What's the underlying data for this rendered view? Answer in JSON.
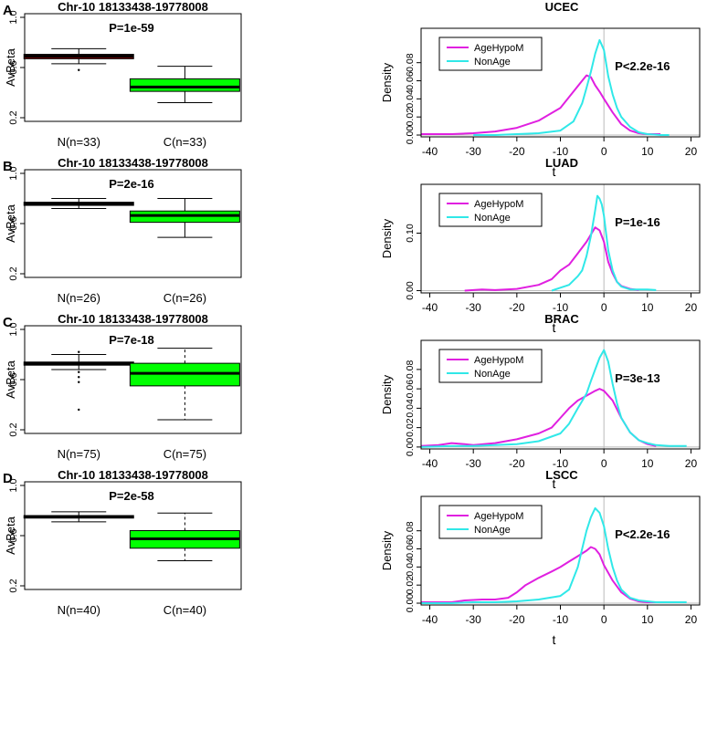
{
  "chart_data": [
    {
      "panel": "A",
      "type": "box",
      "title": "Chr-10 18133438-19778008",
      "ylabel": "AvBeta",
      "ylim": [
        0.2,
        1.0
      ],
      "yticks": [
        "0.2",
        "0.6",
        "1.0"
      ],
      "annotation": "P=1e-59",
      "categories": [
        "N(n=33)",
        "C(n=33)"
      ],
      "boxes": [
        {
          "label": "N(n=33)",
          "color": "#8b0000",
          "whisker_low": 0.63,
          "q1": 0.67,
          "median": 0.69,
          "q3": 0.705,
          "whisker_high": 0.75,
          "outliers": [
            0.58
          ]
        },
        {
          "label": "C(n=33)",
          "color": "#00ff00",
          "whisker_low": 0.32,
          "q1": 0.41,
          "median": 0.445,
          "q3": 0.51,
          "whisker_high": 0.61,
          "outliers": []
        }
      ]
    },
    {
      "panel": "A",
      "type": "line",
      "title": "UCEC",
      "xlabel": "t",
      "ylabel": "Density",
      "xlim": [
        -42,
        22
      ],
      "ylim": [
        -0.002,
        0.118
      ],
      "xticks": [
        "-40",
        "-30",
        "-20",
        "-10",
        "0",
        "10",
        "20"
      ],
      "yticks": [
        "0.00",
        "0.02",
        "0.04",
        "0.06",
        "0.08"
      ],
      "annotation": "P<2.2e-16",
      "legend_position": "top-left",
      "series": [
        {
          "name": "AgeHypoM",
          "color": "#e020e0",
          "x": [
            -42,
            -35,
            -30,
            -25,
            -20,
            -15,
            -10,
            -7,
            -5,
            -4,
            -3,
            -2,
            -1,
            0,
            2,
            4,
            6,
            8,
            10,
            13
          ],
          "y": [
            0.001,
            0.001,
            0.002,
            0.004,
            0.008,
            0.016,
            0.03,
            0.048,
            0.06,
            0.066,
            0.064,
            0.055,
            0.048,
            0.04,
            0.025,
            0.012,
            0.005,
            0.002,
            0.001,
            0.001
          ]
        },
        {
          "name": "NonAge",
          "color": "#30e8e8",
          "x": [
            -30,
            -25,
            -20,
            -15,
            -10,
            -7,
            -5,
            -4,
            -3,
            -2,
            -1,
            0,
            1,
            2,
            3,
            4,
            6,
            8,
            10,
            13,
            15
          ],
          "y": [
            0,
            0,
            0.001,
            0.002,
            0.005,
            0.015,
            0.035,
            0.052,
            0.07,
            0.09,
            0.105,
            0.094,
            0.065,
            0.045,
            0.03,
            0.02,
            0.009,
            0.003,
            0.001,
            0,
            0
          ]
        }
      ]
    },
    {
      "panel": "B",
      "type": "box",
      "title": "Chr-10 18133438-19778008",
      "ylabel": "AvBeta",
      "ylim": [
        0.2,
        1.0
      ],
      "yticks": [
        "0.2",
        "0.6",
        "1.0"
      ],
      "annotation": "P=2e-16",
      "categories": [
        "N(n=26)",
        "C(n=26)"
      ],
      "boxes": [
        {
          "label": "N(n=26)",
          "color": "#000000",
          "whisker_low": 0.72,
          "q1": 0.745,
          "median": 0.755,
          "q3": 0.77,
          "whisker_high": 0.8,
          "outliers": []
        },
        {
          "label": "C(n=26)",
          "color": "#00ff00",
          "whisker_low": 0.49,
          "q1": 0.61,
          "median": 0.665,
          "q3": 0.7,
          "whisker_high": 0.8,
          "outliers": []
        }
      ]
    },
    {
      "panel": "B",
      "type": "line",
      "title": "LUAD",
      "xlabel": "t",
      "ylabel": "Density",
      "xlim": [
        -42,
        22
      ],
      "ylim": [
        -0.004,
        0.185
      ],
      "xticks": [
        "-40",
        "-30",
        "-20",
        "-10",
        "0",
        "10",
        "20"
      ],
      "yticks": [
        "0.00",
        "0.10"
      ],
      "annotation": "P=1e-16",
      "legend_position": "top-left",
      "series": [
        {
          "name": "AgeHypoM",
          "color": "#e020e0",
          "x": [
            -32,
            -28,
            -25,
            -20,
            -15,
            -12,
            -10,
            -8,
            -6,
            -4,
            -2,
            -1,
            0,
            1,
            2,
            3,
            4,
            6,
            8
          ],
          "y": [
            0,
            0.002,
            0.001,
            0.003,
            0.01,
            0.02,
            0.035,
            0.045,
            0.065,
            0.085,
            0.11,
            0.105,
            0.085,
            0.05,
            0.03,
            0.015,
            0.008,
            0.003,
            0.001
          ]
        },
        {
          "name": "NonAge",
          "color": "#30e8e8",
          "x": [
            -12,
            -10,
            -8,
            -6,
            -5,
            -4,
            -3,
            -2,
            -1.5,
            -1,
            -0.5,
            0,
            0.5,
            1,
            2,
            3,
            4,
            6,
            8,
            10,
            12
          ],
          "y": [
            0,
            0.005,
            0.01,
            0.025,
            0.035,
            0.06,
            0.095,
            0.14,
            0.165,
            0.16,
            0.15,
            0.13,
            0.1,
            0.07,
            0.035,
            0.015,
            0.007,
            0.002,
            0.002,
            0.002,
            0.001
          ]
        }
      ]
    },
    {
      "panel": "C",
      "type": "box",
      "title": "Chr-10 18133438-19778008",
      "ylabel": "AvBeta",
      "ylim": [
        0.2,
        1.0
      ],
      "yticks": [
        "0.2",
        "0.6",
        "1.0"
      ],
      "annotation": "P=7e-18",
      "categories": [
        "N(n=75)",
        "C(n=75)"
      ],
      "boxes": [
        {
          "label": "N(n=75)",
          "color": "#000000",
          "whisker_low": 0.68,
          "q1": 0.715,
          "median": 0.725,
          "q3": 0.74,
          "whisker_high": 0.8,
          "outliers": [
            0.36,
            0.58,
            0.62,
            0.66,
            0.82
          ]
        },
        {
          "label": "C(n=75)",
          "color": "#00ff00",
          "whisker_low": 0.28,
          "q1": 0.55,
          "median": 0.65,
          "q3": 0.73,
          "whisker_high": 0.85,
          "outliers": []
        }
      ]
    },
    {
      "panel": "C",
      "type": "line",
      "title": "BRAC",
      "xlabel": "t",
      "ylabel": "Density",
      "xlim": [
        -42,
        22
      ],
      "ylim": [
        -0.002,
        0.11
      ],
      "xticks": [
        "-40",
        "-30",
        "-20",
        "-10",
        "0",
        "10",
        "20"
      ],
      "yticks": [
        "0.00",
        "0.02",
        "0.04",
        "0.06",
        "0.08"
      ],
      "annotation": "P=3e-13",
      "legend_position": "top-left",
      "series": [
        {
          "name": "AgeHypoM",
          "color": "#e020e0",
          "x": [
            -42,
            -38,
            -35,
            -32,
            -30,
            -25,
            -20,
            -15,
            -12,
            -10,
            -8,
            -6,
            -4,
            -2,
            -1,
            0,
            2,
            4,
            6,
            8,
            10,
            12
          ],
          "y": [
            0.001,
            0.002,
            0.004,
            0.003,
            0.002,
            0.004,
            0.008,
            0.014,
            0.02,
            0.03,
            0.04,
            0.048,
            0.053,
            0.058,
            0.06,
            0.058,
            0.048,
            0.03,
            0.015,
            0.007,
            0.003,
            0.001
          ]
        },
        {
          "name": "NonAge",
          "color": "#30e8e8",
          "x": [
            -42,
            -35,
            -30,
            -25,
            -20,
            -15,
            -10,
            -8,
            -6,
            -4,
            -3,
            -2,
            -1,
            0,
            1,
            2,
            3,
            4,
            6,
            8,
            10,
            12,
            15,
            19
          ],
          "y": [
            0,
            0.001,
            0.001,
            0.002,
            0.003,
            0.006,
            0.014,
            0.024,
            0.04,
            0.055,
            0.068,
            0.08,
            0.092,
            0.1,
            0.088,
            0.065,
            0.045,
            0.03,
            0.015,
            0.007,
            0.004,
            0.002,
            0.001,
            0.001
          ]
        }
      ]
    },
    {
      "panel": "D",
      "type": "box",
      "title": "Chr-10 18133438-19778008",
      "ylabel": "AvBeta",
      "ylim": [
        0.2,
        1.0
      ],
      "yticks": [
        "0.2",
        "0.6",
        "1.0"
      ],
      "annotation": "P=2e-58",
      "categories": [
        "N(n=40)",
        "C(n=40)"
      ],
      "boxes": [
        {
          "label": "N(n=40)",
          "color": "#000000",
          "whisker_low": 0.71,
          "q1": 0.74,
          "median": 0.75,
          "q3": 0.76,
          "whisker_high": 0.79,
          "outliers": []
        },
        {
          "label": "C(n=40)",
          "color": "#00ff00",
          "whisker_low": 0.4,
          "q1": 0.5,
          "median": 0.575,
          "q3": 0.64,
          "whisker_high": 0.78,
          "outliers": []
        }
      ]
    },
    {
      "panel": "D",
      "type": "line",
      "title": "LSCC",
      "xlabel": "t",
      "ylabel": "Density",
      "xlim": [
        -42,
        22
      ],
      "ylim": [
        -0.002,
        0.118
      ],
      "xticks": [
        "-40",
        "-30",
        "-20",
        "-10",
        "0",
        "10",
        "20"
      ],
      "yticks": [
        "0.00",
        "0.02",
        "0.04",
        "0.06",
        "0.08"
      ],
      "annotation": "P<2.2e-16",
      "legend_position": "top-left",
      "series": [
        {
          "name": "AgeHypoM",
          "color": "#e020e0",
          "x": [
            -42,
            -35,
            -32,
            -28,
            -25,
            -22,
            -20,
            -18,
            -15,
            -12,
            -10,
            -8,
            -6,
            -4,
            -3,
            -2,
            -1,
            0,
            2,
            4,
            6,
            8,
            10,
            12
          ],
          "y": [
            0.001,
            0.001,
            0.003,
            0.004,
            0.004,
            0.006,
            0.012,
            0.02,
            0.028,
            0.035,
            0.04,
            0.046,
            0.052,
            0.058,
            0.062,
            0.06,
            0.054,
            0.042,
            0.025,
            0.012,
            0.005,
            0.002,
            0.001,
            0.001
          ]
        },
        {
          "name": "NonAge",
          "color": "#30e8e8",
          "x": [
            -42,
            -35,
            -30,
            -25,
            -20,
            -15,
            -10,
            -8,
            -6,
            -5,
            -4,
            -3,
            -2,
            -1,
            0,
            1,
            2,
            3,
            4,
            6,
            8,
            10,
            12,
            15,
            19
          ],
          "y": [
            0,
            0,
            0.001,
            0.001,
            0.002,
            0.004,
            0.008,
            0.015,
            0.04,
            0.06,
            0.08,
            0.095,
            0.105,
            0.1,
            0.085,
            0.06,
            0.04,
            0.025,
            0.015,
            0.006,
            0.003,
            0.002,
            0.001,
            0.001,
            0.001
          ]
        }
      ]
    }
  ],
  "panel_letters": [
    "A",
    "B",
    "C",
    "D"
  ]
}
